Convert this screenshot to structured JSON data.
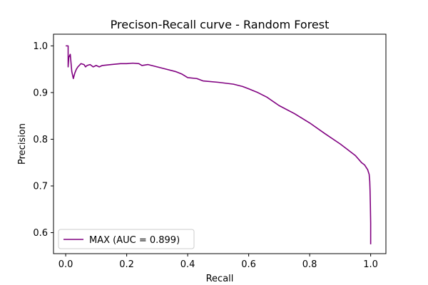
{
  "chart_data": {
    "type": "line",
    "title": "Precison-Recall curve - Random Forest",
    "xlabel": "Recall",
    "ylabel": "Precision",
    "xlim": [
      -0.04,
      1.05
    ],
    "ylim": [
      0.555,
      1.025
    ],
    "xticks": [
      0.0,
      0.2,
      0.4,
      0.6,
      0.8,
      1.0
    ],
    "xtick_labels": [
      "0.0",
      "0.2",
      "0.4",
      "0.6",
      "0.8",
      "1.0"
    ],
    "yticks": [
      0.6,
      0.7,
      0.8,
      0.9,
      1.0
    ],
    "ytick_labels": [
      "0.6",
      "0.7",
      "0.8",
      "0.9",
      "1.0"
    ],
    "grid": false,
    "legend_position": "lower-left",
    "series": [
      {
        "name": "MAX (AUC = 0.899)",
        "color": "#800080",
        "x": [
          0.0,
          0.008,
          0.008,
          0.01,
          0.015,
          0.02,
          0.025,
          0.03,
          0.035,
          0.04,
          0.05,
          0.06,
          0.065,
          0.07,
          0.08,
          0.09,
          0.1,
          0.11,
          0.12,
          0.15,
          0.18,
          0.2,
          0.22,
          0.24,
          0.25,
          0.27,
          0.3,
          0.33,
          0.36,
          0.38,
          0.4,
          0.43,
          0.45,
          0.5,
          0.55,
          0.58,
          0.6,
          0.63,
          0.66,
          0.7,
          0.75,
          0.8,
          0.85,
          0.9,
          0.92,
          0.95,
          0.97,
          0.98,
          0.99,
          0.995,
          0.997,
          0.998,
          0.999,
          1.0,
          1.0
        ],
        "y": [
          1.0,
          1.0,
          0.955,
          0.975,
          0.982,
          0.945,
          0.93,
          0.942,
          0.95,
          0.955,
          0.962,
          0.96,
          0.955,
          0.958,
          0.96,
          0.955,
          0.958,
          0.955,
          0.958,
          0.96,
          0.962,
          0.962,
          0.963,
          0.962,
          0.958,
          0.96,
          0.955,
          0.95,
          0.945,
          0.94,
          0.932,
          0.93,
          0.925,
          0.922,
          0.918,
          0.913,
          0.908,
          0.9,
          0.89,
          0.872,
          0.855,
          0.835,
          0.812,
          0.79,
          0.78,
          0.765,
          0.75,
          0.745,
          0.735,
          0.725,
          0.71,
          0.69,
          0.66,
          0.62,
          0.575
        ]
      }
    ]
  }
}
